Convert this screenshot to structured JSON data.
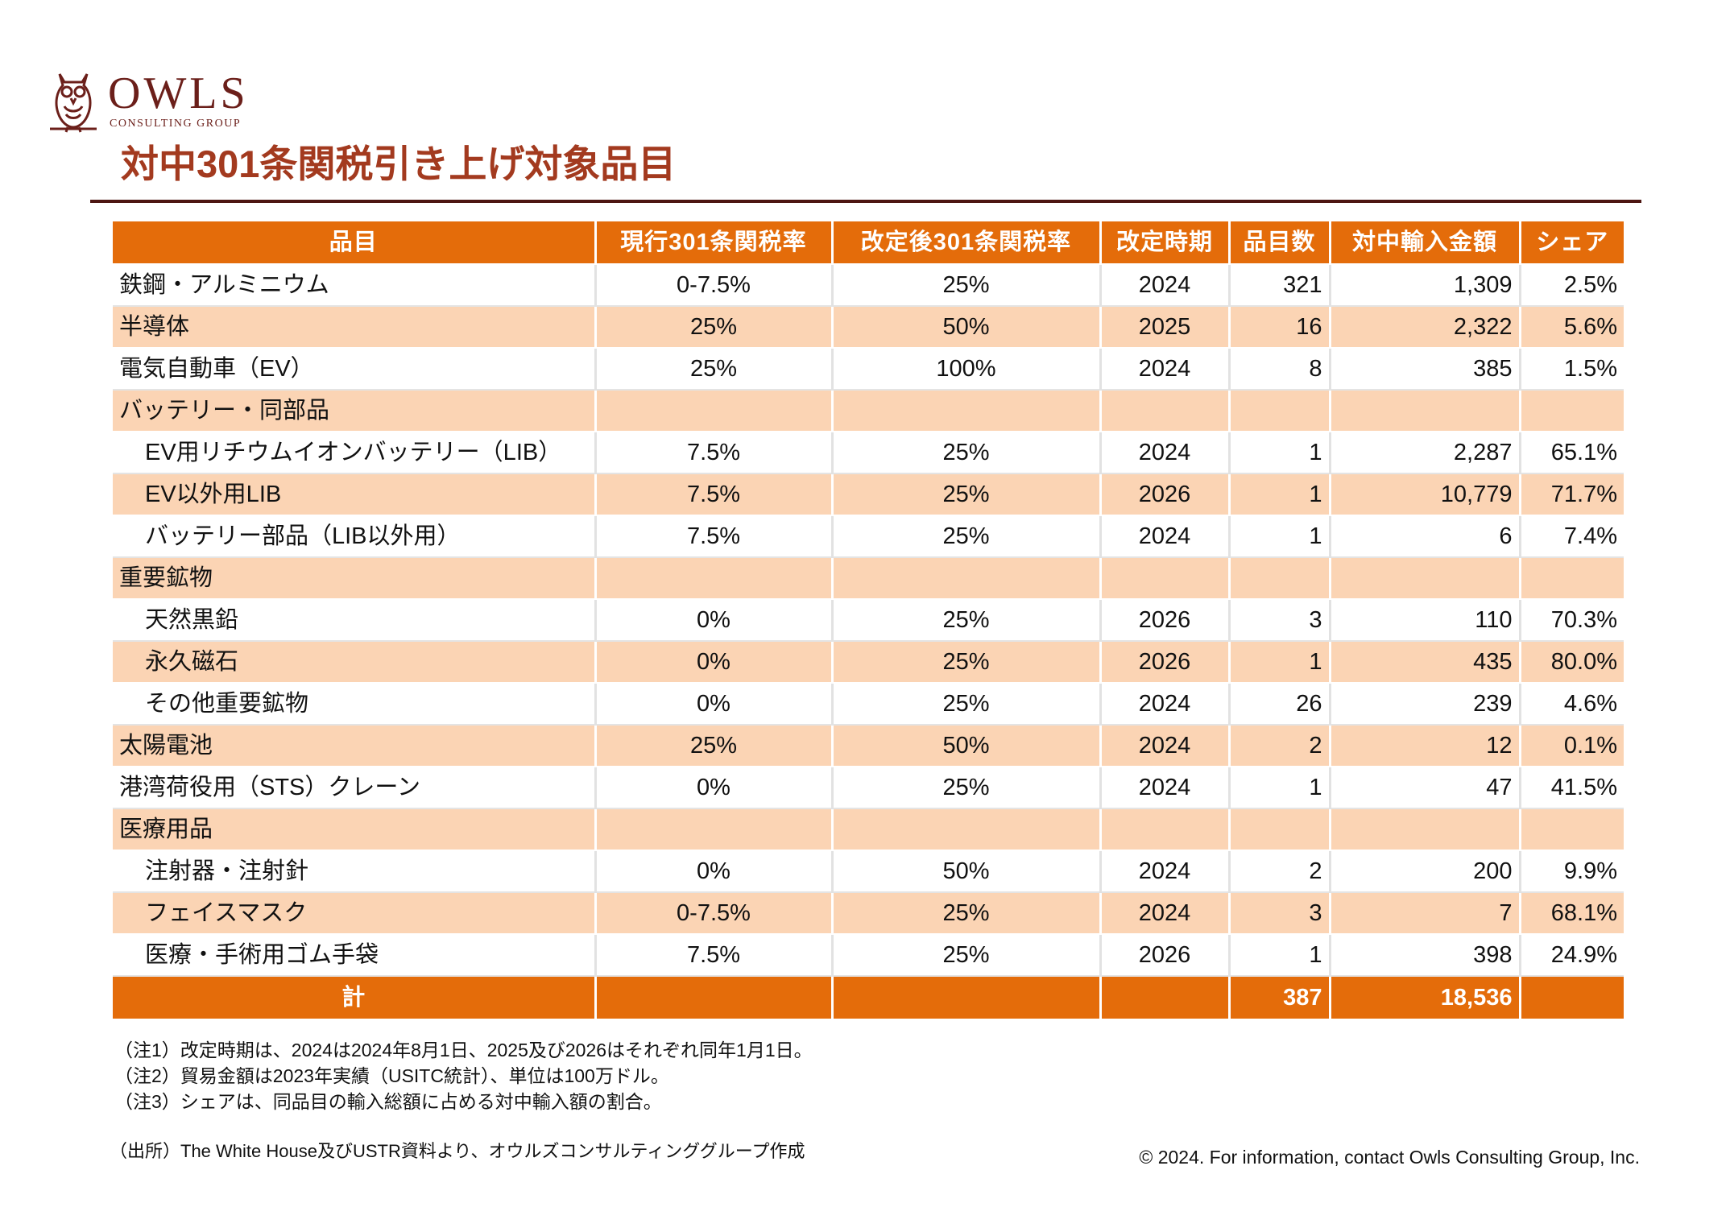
{
  "brand": {
    "name": "OWLS",
    "tagline": "CONSULTING GROUP",
    "color": "#6b1f1a"
  },
  "page_title": "対中301条関税引き上げ対象品目",
  "colors": {
    "header": "#e46c0a",
    "band": "#fbd4b4",
    "title": "#a33a1f"
  },
  "table": {
    "headers": [
      "品目",
      "現行301条関税率",
      "改定後301条関税率",
      "改定時期",
      "品目数",
      "対中輸入金額",
      "シェア"
    ],
    "rows": [
      {
        "name": "鉄鋼・アルミニウム",
        "current": "0-7.5%",
        "revised": "25%",
        "timing": "2024",
        "count": "321",
        "amount": "1,309",
        "share": "2.5%"
      },
      {
        "name": "半導体",
        "current": "25%",
        "revised": "50%",
        "timing": "2025",
        "count": "16",
        "amount": "2,322",
        "share": "5.6%"
      },
      {
        "name": "電気自動車（EV）",
        "current": "25%",
        "revised": "100%",
        "timing": "2024",
        "count": "8",
        "amount": "385",
        "share": "1.5%"
      },
      {
        "name": "バッテリー・同部品",
        "current": "",
        "revised": "",
        "timing": "",
        "count": "",
        "amount": "",
        "share": ""
      },
      {
        "name": "EV用リチウムイオンバッテリー（LIB）",
        "current": "7.5%",
        "revised": "25%",
        "timing": "2024",
        "count": "1",
        "amount": "2,287",
        "share": "65.1%"
      },
      {
        "name": "EV以外用LIB",
        "current": "7.5%",
        "revised": "25%",
        "timing": "2026",
        "count": "1",
        "amount": "10,779",
        "share": "71.7%"
      },
      {
        "name": "バッテリー部品（LIB以外用）",
        "current": "7.5%",
        "revised": "25%",
        "timing": "2024",
        "count": "1",
        "amount": "6",
        "share": "7.4%"
      },
      {
        "name": "重要鉱物",
        "current": "",
        "revised": "",
        "timing": "",
        "count": "",
        "amount": "",
        "share": ""
      },
      {
        "name": "天然黒鉛",
        "current": "0%",
        "revised": "25%",
        "timing": "2026",
        "count": "3",
        "amount": "110",
        "share": "70.3%"
      },
      {
        "name": "永久磁石",
        "current": "0%",
        "revised": "25%",
        "timing": "2026",
        "count": "1",
        "amount": "435",
        "share": "80.0%"
      },
      {
        "name": "その他重要鉱物",
        "current": "0%",
        "revised": "25%",
        "timing": "2024",
        "count": "26",
        "amount": "239",
        "share": "4.6%"
      },
      {
        "name": "太陽電池",
        "current": "25%",
        "revised": "50%",
        "timing": "2024",
        "count": "2",
        "amount": "12",
        "share": "0.1%"
      },
      {
        "name": "港湾荷役用（STS）クレーン",
        "current": "0%",
        "revised": "25%",
        "timing": "2024",
        "count": "1",
        "amount": "47",
        "share": "41.5%"
      },
      {
        "name": "医療用品",
        "current": "",
        "revised": "",
        "timing": "",
        "count": "",
        "amount": "",
        "share": ""
      },
      {
        "name": "注射器・注射針",
        "current": "0%",
        "revised": "50%",
        "timing": "2024",
        "count": "2",
        "amount": "200",
        "share": "9.9%"
      },
      {
        "name": "フェイスマスク",
        "current": "0-7.5%",
        "revised": "25%",
        "timing": "2024",
        "count": "3",
        "amount": "7",
        "share": "68.1%"
      },
      {
        "name": "医療・手術用ゴム手袋",
        "current": "7.5%",
        "revised": "25%",
        "timing": "2026",
        "count": "1",
        "amount": "398",
        "share": "24.9%"
      }
    ],
    "total": {
      "label": "計",
      "count": "387",
      "amount": "18,536"
    }
  },
  "notes": [
    "（注1）改定時期は、2024は2024年8月1日、2025及び2026はそれぞれ同年1月1日。",
    "（注2）貿易金額は2023年実績（USITC統計）、単位は100万ドル。",
    "（注3）シェアは、同品目の輸入総額に占める対中輸入額の割合。"
  ],
  "source": "（出所）The White House及びUSTR資料より、オウルズコンサルティンググループ作成",
  "copyright": "© 2024. For information, contact Owls Consulting Group, Inc."
}
